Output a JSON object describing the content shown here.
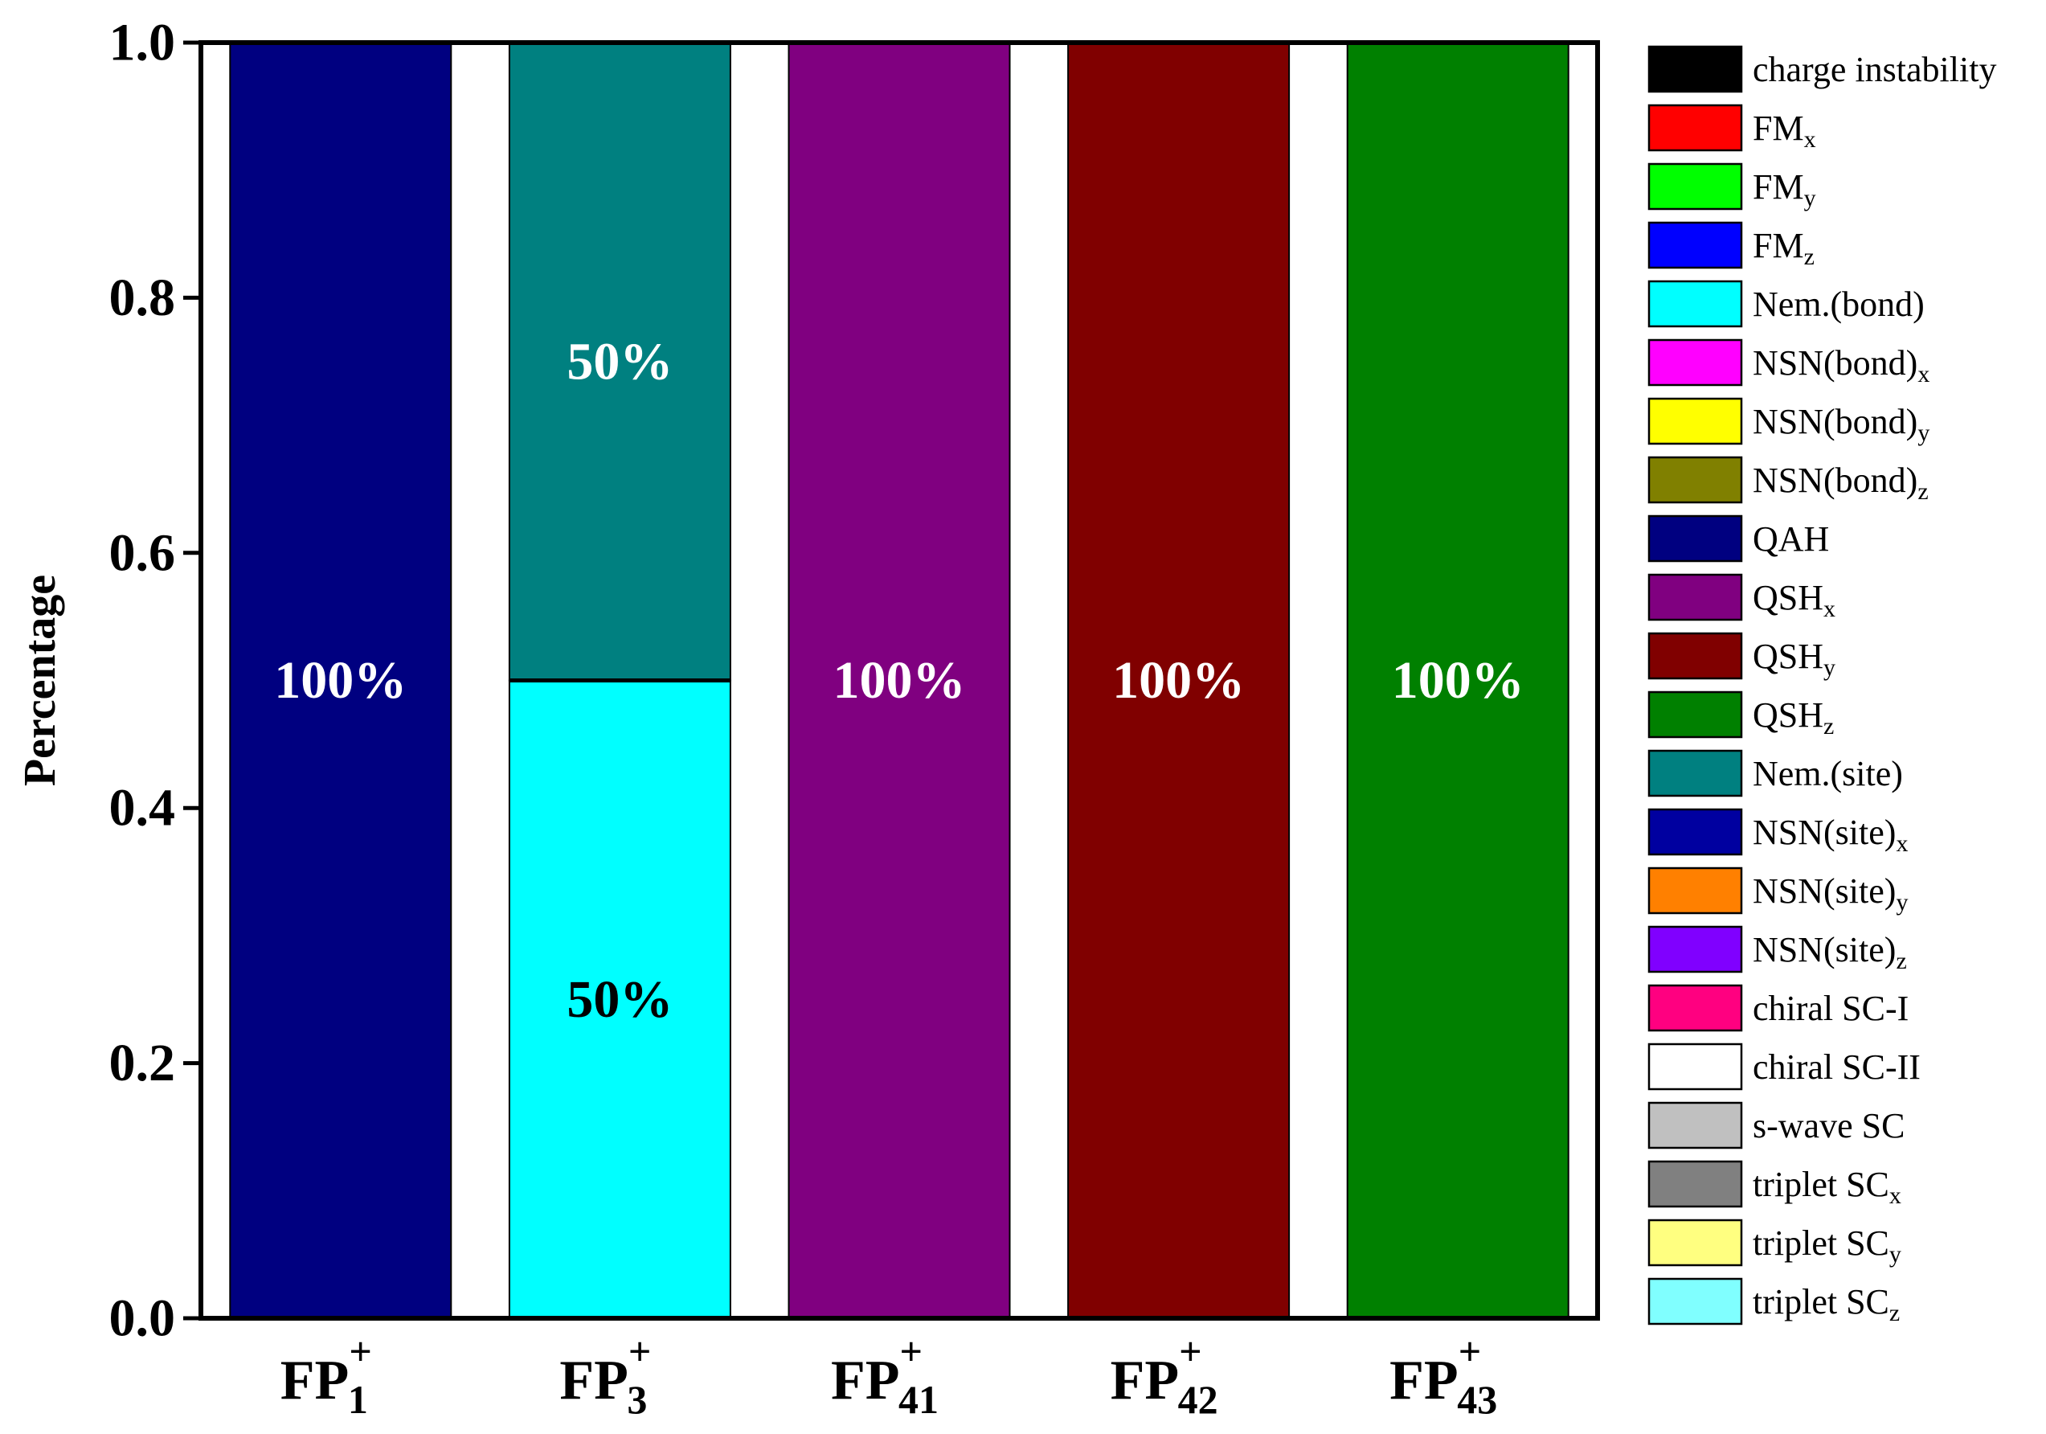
{
  "chart_data": {
    "type": "bar",
    "stacked": true,
    "title": "",
    "xlabel": "",
    "ylabel": "Percentage",
    "ylim": [
      0,
      1.0
    ],
    "yticks": [
      "0.0",
      "0.2",
      "0.4",
      "0.6",
      "0.8",
      "1.0"
    ],
    "grid": false,
    "legend_position": "right",
    "categories": [
      {
        "base": "FP",
        "sub": "1",
        "sup": "+"
      },
      {
        "base": "FP",
        "sub": "3",
        "sup": "+"
      },
      {
        "base": "FP",
        "sub": "41",
        "sup": "+"
      },
      {
        "base": "FP",
        "sub": "42",
        "sup": "+"
      },
      {
        "base": "FP",
        "sub": "43",
        "sup": "+"
      }
    ],
    "bars": [
      {
        "segments": [
          {
            "series": "QAH",
            "value": 1.0,
            "label": "100%"
          }
        ]
      },
      {
        "segments": [
          {
            "series": "Nem.(bond)",
            "value": 0.5,
            "label": "50%"
          },
          {
            "series": "Nem.(site)",
            "value": 0.5,
            "label": "50%"
          }
        ]
      },
      {
        "segments": [
          {
            "series": "QSHx",
            "value": 1.0,
            "label": "100%"
          }
        ]
      },
      {
        "segments": [
          {
            "series": "QSHy",
            "value": 1.0,
            "label": "100%"
          }
        ]
      },
      {
        "segments": [
          {
            "series": "QSHz",
            "value": 1.0,
            "label": "100%"
          }
        ]
      }
    ],
    "legend": [
      {
        "id": "charge instability",
        "base": "charge instability",
        "sub": "",
        "color": "#000000"
      },
      {
        "id": "FMx",
        "base": "FM",
        "sub": "x",
        "color": "#ff0000"
      },
      {
        "id": "FMy",
        "base": "FM",
        "sub": "y",
        "color": "#00ff00"
      },
      {
        "id": "FMz",
        "base": "FM",
        "sub": "z",
        "color": "#0000ff"
      },
      {
        "id": "Nem.(bond)",
        "base": "Nem.(bond)",
        "sub": "",
        "color": "#00ffff"
      },
      {
        "id": "NSN(bond)x",
        "base": "NSN(bond)",
        "sub": "x",
        "color": "#ff00ff"
      },
      {
        "id": "NSN(bond)y",
        "base": "NSN(bond)",
        "sub": "y",
        "color": "#ffff00"
      },
      {
        "id": "NSN(bond)z",
        "base": "NSN(bond)",
        "sub": "z",
        "color": "#808000"
      },
      {
        "id": "QAH",
        "base": "QAH",
        "sub": "",
        "color": "#000080"
      },
      {
        "id": "QSHx",
        "base": "QSH",
        "sub": "x",
        "color": "#800080"
      },
      {
        "id": "QSHy",
        "base": "QSH",
        "sub": "y",
        "color": "#800000"
      },
      {
        "id": "QSHz",
        "base": "QSH",
        "sub": "z",
        "color": "#008000"
      },
      {
        "id": "Nem.(site)",
        "base": "Nem.(site)",
        "sub": "",
        "color": "#008080"
      },
      {
        "id": "NSN(site)x",
        "base": "NSN(site)",
        "sub": "x",
        "color": "#0000a0"
      },
      {
        "id": "NSN(site)y",
        "base": "NSN(site)",
        "sub": "y",
        "color": "#ff8000"
      },
      {
        "id": "NSN(site)z",
        "base": "NSN(site)",
        "sub": "z",
        "color": "#8000ff"
      },
      {
        "id": "chiral SC-I",
        "base": "chiral SC-I",
        "sub": "",
        "color": "#ff0080"
      },
      {
        "id": "chiral SC-II",
        "base": "chiral SC-II",
        "sub": "",
        "color": "#ffffff"
      },
      {
        "id": "s-wave SC",
        "base": "s-wave SC",
        "sub": "",
        "color": "#c0c0c0"
      },
      {
        "id": "triplet SCx",
        "base": "triplet SC",
        "sub": "x",
        "color": "#808080"
      },
      {
        "id": "triplet SCy",
        "base": "triplet SC",
        "sub": "y",
        "color": "#ffff80"
      },
      {
        "id": "triplet SCz",
        "base": "triplet SC",
        "sub": "z",
        "color": "#80ffff"
      }
    ]
  }
}
